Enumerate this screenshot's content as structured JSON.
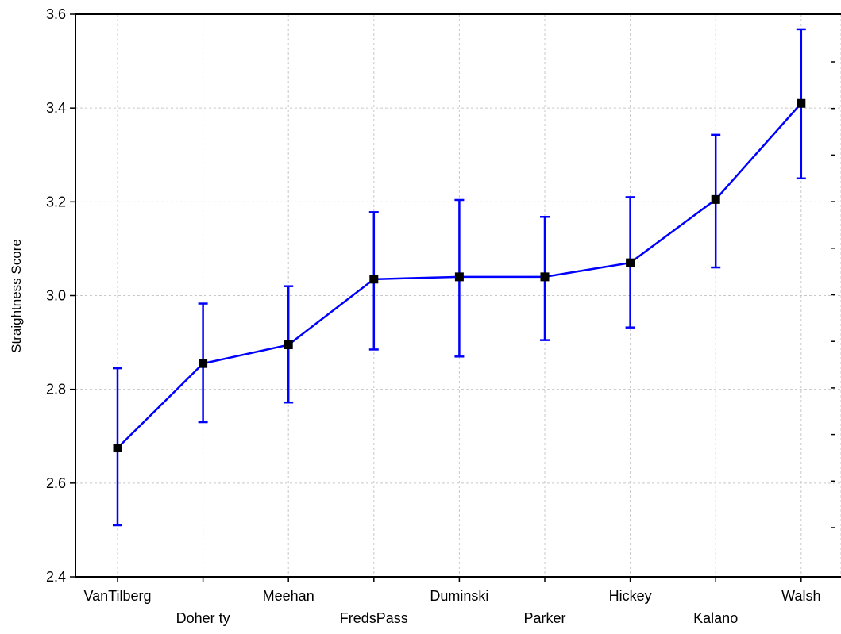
{
  "chart_data": {
    "type": "line",
    "title": "",
    "xlabel": "",
    "ylabel": "Straightness Score",
    "ylim": [
      2.4,
      3.6
    ],
    "y_ticks": [
      "2.4",
      "2.6",
      "2.8",
      "3.0",
      "3.2",
      "3.4",
      "3.6"
    ],
    "categories": [
      "VanTilberg",
      "Doher ty",
      "Meehan",
      "FredsPass",
      "Duminski",
      "Parker",
      "Hickey",
      "Kalano",
      "Walsh"
    ],
    "values": [
      2.675,
      2.855,
      2.895,
      3.035,
      3.04,
      3.04,
      3.07,
      3.205,
      3.41
    ],
    "error_lower": [
      2.51,
      2.73,
      2.772,
      2.885,
      2.87,
      2.905,
      2.932,
      3.06,
      3.25
    ],
    "error_upper": [
      2.845,
      2.983,
      3.02,
      3.178,
      3.204,
      3.168,
      3.21,
      3.343,
      3.568
    ],
    "grid": true,
    "line_color": "#0000ff",
    "marker_color": "#000000"
  }
}
